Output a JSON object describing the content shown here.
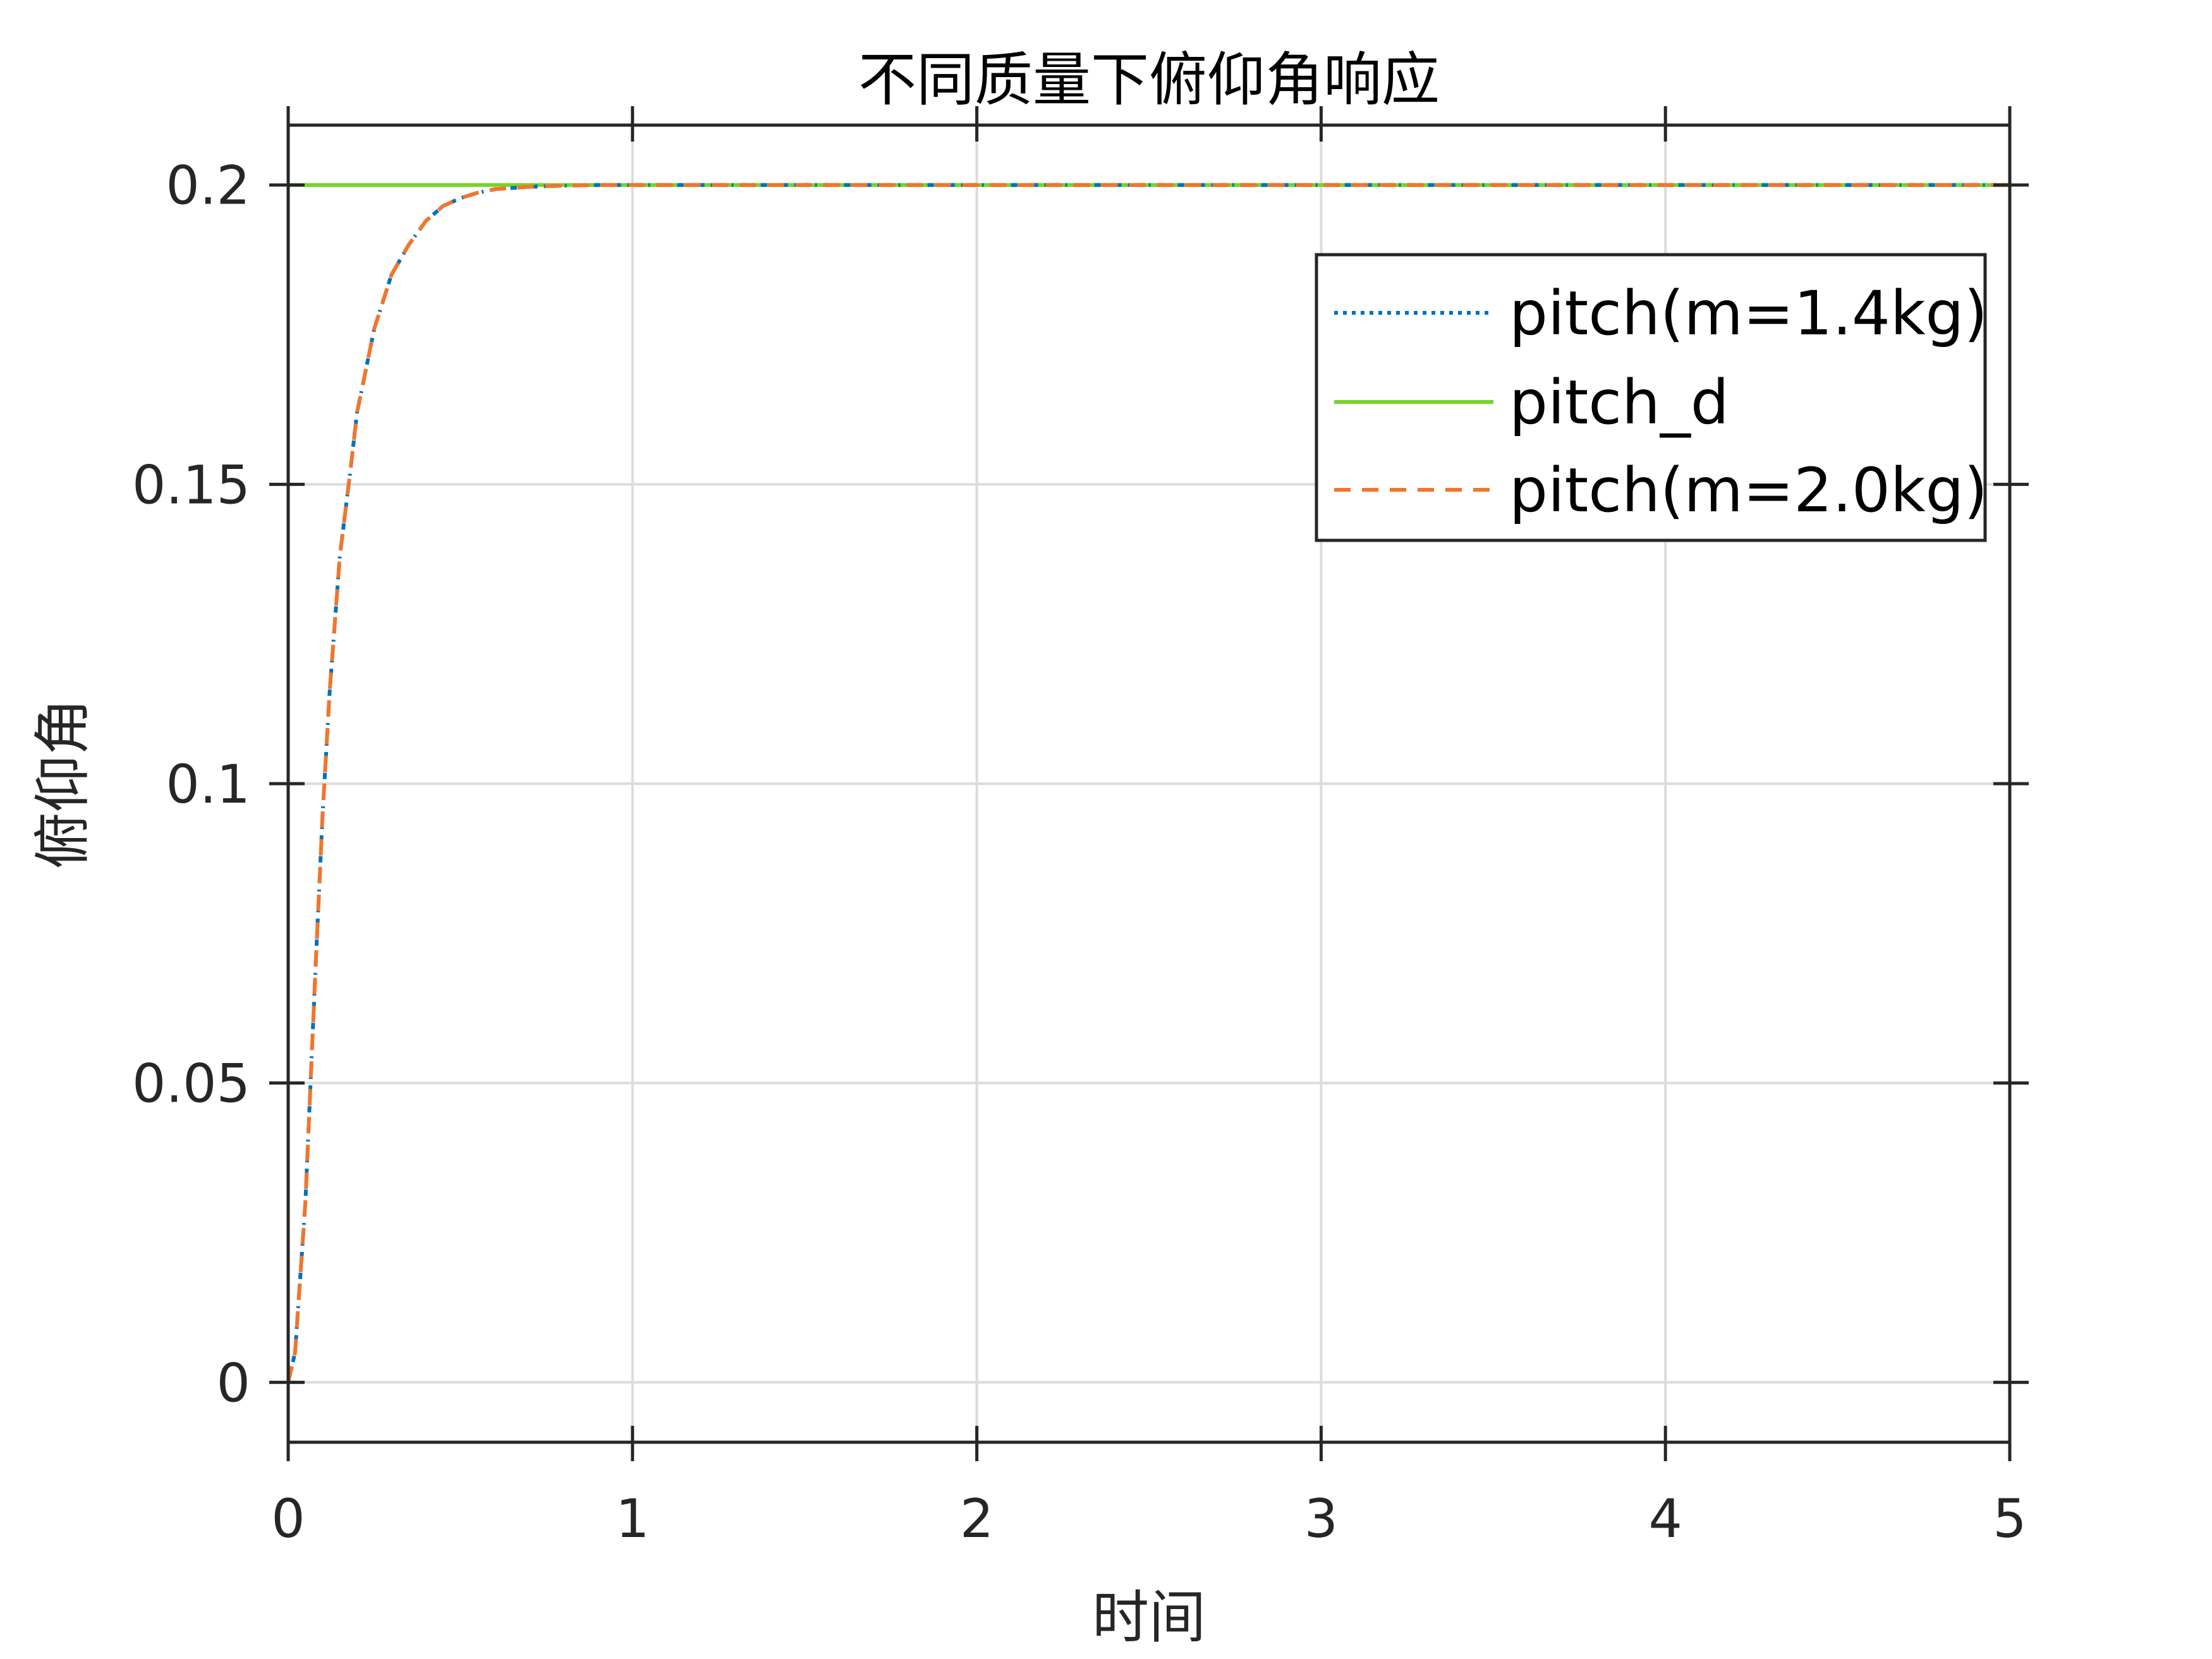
{
  "chart_data": {
    "type": "line",
    "title": "不同质量下俯仰角响应",
    "xlabel": "时间",
    "ylabel": "俯仰角",
    "xlim": [
      0,
      5
    ],
    "ylim": [
      -0.01,
      0.21
    ],
    "xticks": [
      0,
      1,
      2,
      3,
      4,
      5
    ],
    "xtick_labels": [
      "0",
      "1",
      "2",
      "3",
      "4",
      "5"
    ],
    "yticks": [
      0,
      0.05,
      0.1,
      0.15,
      0.2
    ],
    "ytick_labels": [
      "0",
      "0.05",
      "0.1",
      "0.15",
      "0.2"
    ],
    "grid": true,
    "legend_position": "top-right",
    "series": [
      {
        "name": "pitch(m=1.4kg)",
        "color": "#0072BD",
        "style": "dash-dot",
        "x": [
          0,
          0.02,
          0.05,
          0.08,
          0.1,
          0.12,
          0.15,
          0.18,
          0.2,
          0.25,
          0.3,
          0.35,
          0.4,
          0.45,
          0.5,
          0.55,
          0.6,
          0.7,
          0.8,
          0.9,
          1.0,
          1.5,
          2.0,
          3.0,
          4.0,
          5.0
        ],
        "y": [
          0,
          0.005,
          0.03,
          0.07,
          0.095,
          0.115,
          0.138,
          0.152,
          0.162,
          0.176,
          0.185,
          0.19,
          0.194,
          0.1965,
          0.1978,
          0.1987,
          0.1993,
          0.1997,
          0.1999,
          0.2,
          0.2,
          0.2,
          0.2,
          0.2,
          0.2,
          0.2
        ]
      },
      {
        "name": "pitch_d",
        "color": "#77D42A",
        "style": "solid",
        "x": [
          0,
          5
        ],
        "y": [
          0.2,
          0.2
        ]
      },
      {
        "name": "pitch(m=2.0kg)",
        "color": "#F0762E",
        "style": "dashed",
        "x": [
          0,
          0.02,
          0.05,
          0.08,
          0.1,
          0.12,
          0.15,
          0.18,
          0.2,
          0.25,
          0.3,
          0.35,
          0.4,
          0.45,
          0.5,
          0.55,
          0.6,
          0.7,
          0.8,
          0.9,
          1.0,
          1.5,
          2.0,
          3.0,
          4.0,
          5.0
        ],
        "y": [
          0,
          0.005,
          0.03,
          0.07,
          0.095,
          0.115,
          0.138,
          0.152,
          0.162,
          0.176,
          0.185,
          0.19,
          0.194,
          0.1965,
          0.1978,
          0.1987,
          0.1993,
          0.1997,
          0.1999,
          0.2,
          0.2,
          0.2,
          0.2,
          0.2,
          0.2,
          0.2
        ]
      }
    ]
  }
}
